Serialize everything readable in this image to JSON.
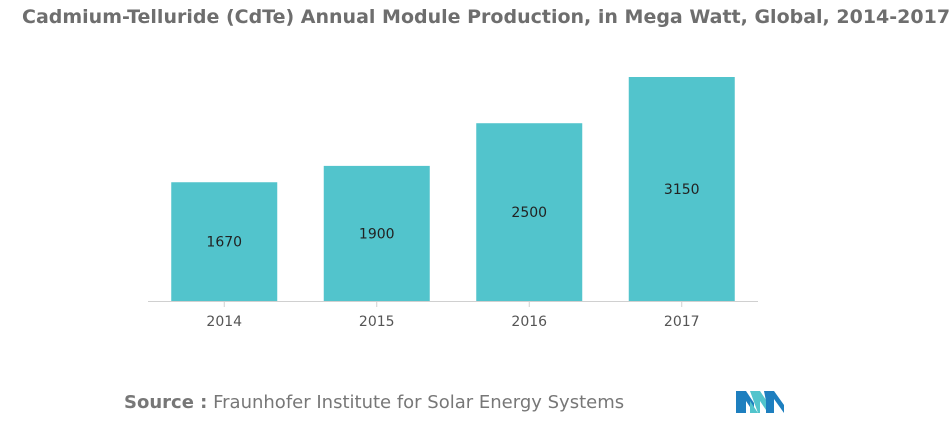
{
  "chart_data": {
    "type": "bar",
    "title": "Cadmium-Telluride (CdTe) Annual Module Production, in Mega Watt, Global, 2014-2017",
    "categories": [
      "2014",
      "2015",
      "2016",
      "2017"
    ],
    "values": [
      1670,
      1900,
      2500,
      3150
    ],
    "data_labels": [
      "1670",
      "1900",
      "2500",
      "3150"
    ],
    "xlabel": "",
    "ylabel": "",
    "ylim": [
      0,
      3150
    ],
    "grid": false,
    "legend": "none",
    "bar_color": "#52c4cc"
  },
  "source": {
    "label": "Source :",
    "text": "Fraunhofer Institute for Solar Energy Systems"
  },
  "logo": {
    "icon": "mordor-logo-icon",
    "colors": [
      "#1e7fbf",
      "#52c4cc"
    ]
  },
  "colors": {
    "title": "#6e6e6e",
    "axis": "#d0d0d0",
    "tick_label": "#555555",
    "data_label": "#222222"
  }
}
